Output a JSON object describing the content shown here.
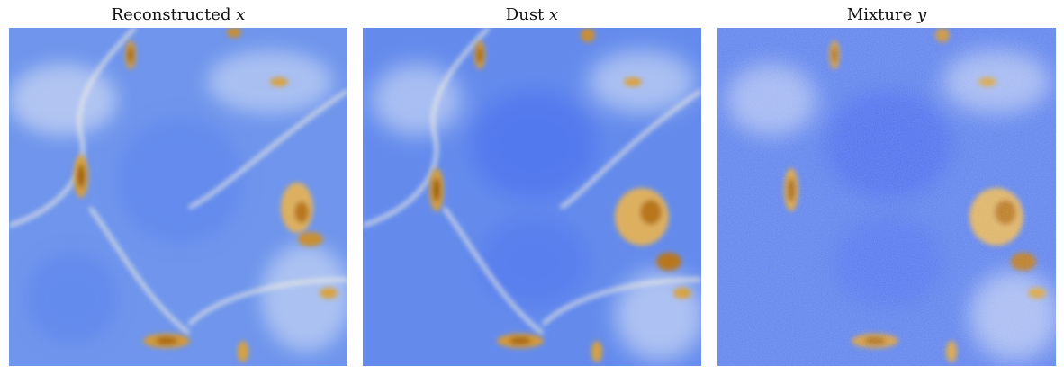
{
  "figure": {
    "panels": [
      {
        "title": "Reconstructed",
        "variable": "x"
      },
      {
        "title": "Dust",
        "variable": "x"
      },
      {
        "title": "Mixture",
        "variable": "y"
      }
    ],
    "colors": {
      "low": "#3f63f2",
      "mid_low": "#7aa0ef",
      "neutral": "#f6f0dc",
      "high": "#d8a23c",
      "peak": "#a86506"
    },
    "colormap": "blue-white-gold diverging"
  }
}
